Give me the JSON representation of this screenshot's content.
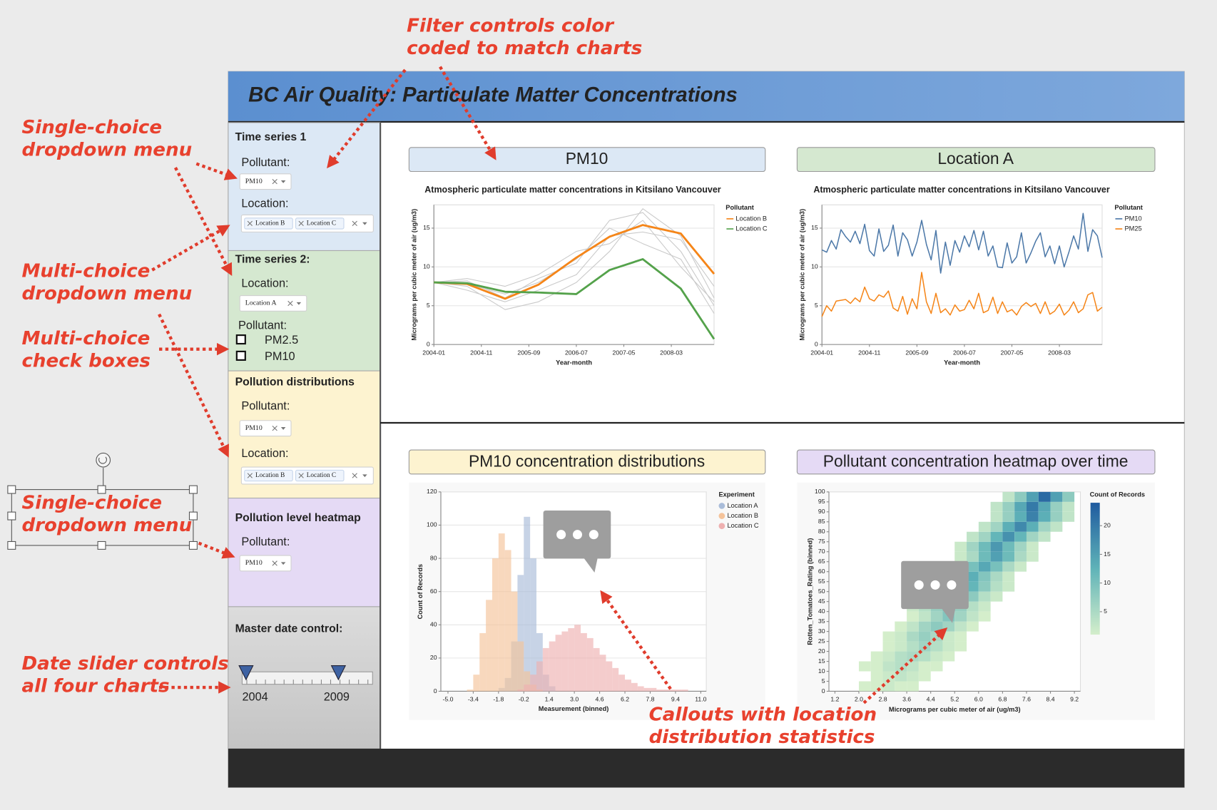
{
  "header": {
    "title": "BC Air Quality: Particulate Matter Concentrations"
  },
  "sidebar": {
    "time_series_1": {
      "title": "Time series 1",
      "pollutant_label": "Pollutant:",
      "pollutant": "PM10",
      "location_label": "Location:",
      "locations": [
        "Location B",
        "Location C"
      ]
    },
    "time_series_2": {
      "title": "Time series 2:",
      "location_label": "Location:",
      "location": "Location A",
      "pollutant_label": "Pollutant:",
      "pollutants": [
        "PM2.5",
        "PM10"
      ]
    },
    "distributions": {
      "title": "Pollution distributions",
      "pollutant_label": "Pollutant:",
      "pollutant": "PM10",
      "location_label": "Location:",
      "locations": [
        "Location B",
        "Location C"
      ]
    },
    "heatmap": {
      "title": "Pollution level heatmap",
      "pollutant_label": "Pollutant:",
      "pollutant": "PM10"
    },
    "date_control": {
      "title": "Master date control:",
      "start": "2004",
      "end": "2009"
    }
  },
  "panels": [
    "PM10",
    "Location A",
    "PM10 concentration distributions",
    "Pollutant concentration heatmap over time"
  ],
  "annotations": [
    [
      "Filter controls color",
      "coded to match charts"
    ],
    [
      "Single-choice",
      "dropdown menu"
    ],
    [
      "Multi-choice",
      "dropdown menu"
    ],
    [
      "Multi-choice",
      "check boxes"
    ],
    [
      "Single-choice",
      "dropdown menu"
    ],
    [
      "Date slider controls",
      "all four charts"
    ],
    [
      "Callouts with location",
      "distribution statistics"
    ]
  ],
  "chart_data": [
    {
      "type": "line",
      "title": "Atmospheric particulate matter concentrations in Kitsilano Vancouver",
      "x_label": "Year-month",
      "y_label": "Micrograms per cubic meter of air (ug/m3)",
      "legend_title": "Pollutant",
      "x": [
        "2004-01",
        "2004-08",
        "2005-04",
        "2005-11",
        "2006-07",
        "2007-02",
        "2007-09",
        "2008-05",
        "2008-12"
      ],
      "series": [
        {
          "name": "Location B",
          "color": "#f58518",
          "values": [
            8.0,
            7.8,
            5.9,
            7.7,
            11.2,
            13.9,
            15.4,
            14.3,
            9.1
          ]
        },
        {
          "name": "Location C",
          "color": "#54a24b",
          "values": [
            8.0,
            7.9,
            6.8,
            6.7,
            6.5,
            9.6,
            11.0,
            7.2,
            0.7
          ]
        }
      ],
      "background_color": "#c9c9c9",
      "background_series": [
        [
          8.0,
          7.5,
          4.5,
          5.5,
          8.0,
          12.0,
          17.5,
          14.0,
          6.0
        ],
        [
          8.0,
          8.2,
          6.0,
          8.5,
          10.5,
          16.0,
          17.0,
          12.0,
          5.0
        ],
        [
          8.0,
          7.0,
          5.5,
          7.0,
          9.0,
          14.0,
          14.5,
          13.5,
          7.5
        ],
        [
          8.0,
          8.5,
          7.5,
          9.0,
          12.0,
          13.0,
          16.0,
          10.0,
          5.5
        ],
        [
          8.0,
          7.8,
          6.5,
          8.0,
          11.0,
          15.0,
          13.0,
          11.0,
          4.0
        ]
      ],
      "xlim": [
        "2004-01",
        "2008-12"
      ],
      "xticks": [
        "2004-01",
        "2004-11",
        "2005-09",
        "2006-07",
        "2007-05",
        "2008-03"
      ],
      "ylim": [
        0,
        18
      ],
      "yticks": [
        0,
        5,
        10,
        15
      ],
      "grid": true
    },
    {
      "type": "line",
      "title": "Atmospheric particulate matter concentrations in Kitsilano Vancouver",
      "x_label": "Year-month",
      "y_label": "Micrograms per cubic meter of air (ug/m3)",
      "legend_title": "Pollutant",
      "x": [
        "2004-01",
        "2004-02",
        "2004-03",
        "2004-04",
        "2004-05",
        "2004-06",
        "2004-07",
        "2004-08",
        "2004-09",
        "2004-10",
        "2004-11",
        "2004-12",
        "2005-01",
        "2005-02",
        "2005-03",
        "2005-04",
        "2005-05",
        "2005-06",
        "2005-07",
        "2005-08",
        "2005-09",
        "2005-10",
        "2005-11",
        "2005-12",
        "2006-01",
        "2006-02",
        "2006-03",
        "2006-04",
        "2006-05",
        "2006-06",
        "2006-07",
        "2006-08",
        "2006-09",
        "2006-10",
        "2006-11",
        "2006-12",
        "2007-01",
        "2007-02",
        "2007-03",
        "2007-04",
        "2007-05",
        "2007-06",
        "2007-07",
        "2007-08",
        "2007-09",
        "2007-10",
        "2007-11",
        "2007-12",
        "2008-01",
        "2008-02",
        "2008-03",
        "2008-04",
        "2008-05",
        "2008-06",
        "2008-07",
        "2008-08",
        "2008-09",
        "2008-10",
        "2008-11",
        "2008-12"
      ],
      "series": [
        {
          "name": "PM10",
          "color": "#4c78a8",
          "values": [
            12.2,
            11.9,
            13.4,
            12.3,
            14.8,
            13.9,
            13.2,
            14.6,
            13.0,
            15.5,
            12.1,
            11.4,
            14.9,
            12.0,
            12.8,
            15.4,
            11.4,
            14.4,
            13.5,
            11.4,
            13.2,
            16.0,
            12.9,
            10.9,
            14.7,
            9.2,
            13.2,
            10.2,
            13.4,
            11.9,
            14.0,
            12.6,
            14.7,
            12.2,
            14.6,
            11.4,
            12.7,
            10.0,
            9.9,
            13.1,
            10.5,
            11.3,
            14.4,
            10.5,
            11.8,
            13.3,
            14.4,
            11.3,
            12.7,
            10.4,
            12.7,
            10.0,
            11.9,
            14.0,
            12.3,
            16.9,
            12.0,
            14.8,
            14.0,
            11.2
          ]
        },
        {
          "name": "PM25",
          "color": "#f58518",
          "values": [
            3.6,
            5.0,
            4.3,
            5.6,
            5.7,
            5.8,
            5.3,
            6.0,
            5.5,
            7.4,
            5.9,
            5.6,
            6.4,
            6.1,
            6.9,
            4.7,
            4.3,
            6.2,
            3.9,
            5.9,
            4.6,
            9.3,
            5.5,
            4.0,
            6.6,
            4.1,
            4.6,
            3.8,
            5.1,
            4.3,
            4.5,
            5.7,
            4.6,
            6.6,
            4.1,
            4.4,
            6.1,
            4.0,
            5.5,
            4.2,
            4.5,
            3.8,
            4.9,
            5.4,
            4.9,
            5.3,
            4.0,
            5.5,
            3.9,
            4.3,
            5.2,
            3.8,
            4.4,
            5.5,
            4.1,
            4.6,
            6.4,
            6.7,
            4.3,
            4.8
          ]
        }
      ],
      "xlim": [
        "2004-01",
        "2008-12"
      ],
      "xticks": [
        "2004-01",
        "2004-11",
        "2005-09",
        "2006-07",
        "2007-05",
        "2008-03"
      ],
      "ylim": [
        0,
        18
      ],
      "yticks": [
        0,
        5,
        10,
        15
      ],
      "grid": true
    },
    {
      "type": "histogram",
      "x_label": "Measurement (binned)",
      "y_label": "Count of Records",
      "legend_title": "Experiment",
      "bins": [
        -5,
        -4.6,
        -4.2,
        -3.8,
        -3.4,
        -3,
        -2.6,
        -2.2,
        -1.8,
        -1.4,
        -1,
        -0.6,
        -0.2,
        0.2,
        0.6,
        1,
        1.4,
        1.8,
        2.2,
        2.6,
        3,
        3.4,
        3.8,
        4.2,
        4.6,
        5,
        5.4,
        5.8,
        6.2,
        6.6,
        7,
        7.4,
        7.8,
        8.2,
        8.6,
        9,
        9.4,
        9.8,
        10.2,
        10.6,
        11
      ],
      "series": [
        {
          "name": "Location A",
          "color": "#a9bcd9",
          "values": [
            0,
            0,
            0,
            0,
            0,
            0,
            0,
            0,
            2,
            8,
            30,
            70,
            105,
            80,
            35,
            10,
            3,
            0,
            0,
            0,
            0,
            0,
            0,
            0,
            0,
            0,
            0,
            0,
            0,
            0,
            0,
            0,
            0,
            0,
            0,
            0,
            0,
            0,
            0,
            0
          ]
        },
        {
          "name": "Location B",
          "color": "#f5c39a",
          "values": [
            0,
            0,
            0,
            1,
            10,
            35,
            55,
            80,
            95,
            85,
            60,
            30,
            12,
            4,
            1,
            0,
            0,
            0,
            0,
            0,
            0,
            0,
            0,
            0,
            0,
            0,
            0,
            0,
            0,
            0,
            0,
            0,
            0,
            0,
            0,
            0,
            0,
            0,
            0,
            0
          ]
        },
        {
          "name": "Location C",
          "color": "#eeb0b0",
          "values": [
            0,
            0,
            0,
            0,
            0,
            0,
            0,
            0,
            0,
            0,
            0,
            1,
            4,
            10,
            18,
            26,
            30,
            34,
            36,
            38,
            40,
            35,
            32,
            26,
            22,
            18,
            14,
            10,
            7,
            5,
            3,
            2,
            2,
            1,
            1,
            1,
            1,
            1,
            0,
            0
          ]
        }
      ],
      "xlim": [
        -5.45,
        11.35
      ],
      "xticks": [
        {
          "value": -5,
          "label": "-5.0"
        },
        -3.4,
        -1.8,
        -0.2,
        1.4,
        {
          "value": 3,
          "label": "3.0"
        },
        4.6,
        6.2,
        7.8,
        9.4,
        {
          "value": 11,
          "label": "11.0"
        }
      ],
      "ylim": [
        0,
        120
      ],
      "yticks": [
        0,
        20,
        40,
        60,
        80,
        100,
        120
      ],
      "grid": true
    },
    {
      "type": "heatmap",
      "x_label": "Micrograms per cubic meter of air (ug/m3)",
      "y_label": "Rotten_Tomatoes_Rating (binned)",
      "legend_title": "Count of Records",
      "x_bins": [
        1.2,
        1.6,
        2.0,
        2.4,
        2.8,
        3.2,
        3.6,
        4.0,
        4.4,
        4.8,
        5.2,
        5.6,
        6.0,
        6.4,
        6.8,
        7.2,
        7.6,
        8.0,
        8.4,
        8.8,
        9.2
      ],
      "y_bins": [
        0,
        5,
        10,
        15,
        20,
        25,
        30,
        35,
        40,
        45,
        50,
        55,
        60,
        65,
        70,
        75,
        80,
        85,
        90,
        95,
        100
      ],
      "counts": [
        [
          0,
          0,
          1,
          1,
          2,
          1,
          1,
          0,
          0,
          0,
          0,
          0,
          0,
          0,
          0,
          0,
          0,
          0,
          0,
          0
        ],
        [
          0,
          0,
          0,
          1,
          2,
          3,
          2,
          1,
          0,
          0,
          0,
          0,
          0,
          0,
          0,
          0,
          0,
          0,
          0,
          0
        ],
        [
          0,
          0,
          1,
          1,
          3,
          4,
          3,
          1,
          1,
          0,
          0,
          0,
          0,
          0,
          0,
          0,
          0,
          0,
          0,
          0
        ],
        [
          0,
          0,
          0,
          1,
          2,
          4,
          5,
          4,
          2,
          1,
          0,
          0,
          0,
          0,
          0,
          0,
          0,
          0,
          0,
          0
        ],
        [
          0,
          0,
          0,
          0,
          1,
          2,
          4,
          6,
          4,
          2,
          1,
          0,
          0,
          0,
          0,
          0,
          0,
          0,
          0,
          0
        ],
        [
          0,
          0,
          0,
          0,
          1,
          2,
          5,
          7,
          5,
          2,
          1,
          0,
          0,
          0,
          0,
          0,
          0,
          0,
          0,
          0
        ],
        [
          0,
          0,
          0,
          0,
          0,
          1,
          3,
          6,
          8,
          6,
          3,
          1,
          0,
          0,
          0,
          0,
          0,
          0,
          0,
          0
        ],
        [
          0,
          0,
          0,
          0,
          0,
          0,
          1,
          3,
          6,
          9,
          6,
          3,
          1,
          0,
          0,
          0,
          0,
          0,
          0,
          0
        ],
        [
          0,
          0,
          0,
          0,
          0,
          0,
          2,
          4,
          7,
          10,
          7,
          4,
          2,
          0,
          0,
          0,
          0,
          0,
          0,
          0
        ],
        [
          0,
          0,
          0,
          0,
          0,
          0,
          0,
          2,
          4,
          8,
          11,
          8,
          4,
          2,
          0,
          0,
          0,
          0,
          0,
          0
        ],
        [
          0,
          0,
          0,
          0,
          0,
          0,
          0,
          0,
          2,
          4,
          8,
          12,
          8,
          4,
          2,
          0,
          0,
          0,
          0,
          0
        ],
        [
          0,
          0,
          0,
          0,
          0,
          0,
          0,
          0,
          2,
          5,
          9,
          13,
          9,
          5,
          2,
          0,
          0,
          0,
          0,
          0
        ],
        [
          0,
          0,
          0,
          0,
          0,
          0,
          0,
          0,
          0,
          2,
          5,
          10,
          14,
          10,
          5,
          2,
          0,
          0,
          0,
          0
        ],
        [
          0,
          0,
          0,
          0,
          0,
          0,
          0,
          0,
          0,
          0,
          2,
          5,
          11,
          15,
          11,
          5,
          2,
          0,
          0,
          0
        ],
        [
          0,
          0,
          0,
          0,
          0,
          0,
          0,
          0,
          0,
          0,
          2,
          6,
          11,
          16,
          11,
          6,
          2,
          0,
          0,
          0
        ],
        [
          0,
          0,
          0,
          0,
          0,
          0,
          0,
          0,
          0,
          0,
          0,
          3,
          6,
          12,
          17,
          12,
          6,
          3,
          0,
          0
        ],
        [
          0,
          0,
          0,
          0,
          0,
          0,
          0,
          0,
          0,
          0,
          0,
          0,
          3,
          6,
          13,
          18,
          13,
          6,
          3,
          0
        ],
        [
          0,
          0,
          0,
          0,
          0,
          0,
          0,
          0,
          0,
          0,
          0,
          0,
          0,
          3,
          7,
          13,
          19,
          13,
          7,
          3
        ],
        [
          0,
          0,
          0,
          0,
          0,
          0,
          0,
          0,
          0,
          0,
          0,
          0,
          0,
          3,
          7,
          14,
          20,
          14,
          7,
          3
        ],
        [
          0,
          0,
          0,
          0,
          0,
          0,
          0,
          0,
          0,
          0,
          0,
          0,
          0,
          0,
          3,
          8,
          15,
          22,
          15,
          8
        ]
      ],
      "colors": [
        "#d4eecb",
        "#5fb3b8",
        "#1f5b9f"
      ],
      "zlim": [
        1,
        24
      ],
      "zticks": [
        5,
        10,
        15,
        20
      ],
      "xlim": [
        1.0,
        9.4
      ],
      "xticks": [
        1.2,
        {
          "value": 2,
          "label": "2.0"
        },
        2.8,
        3.6,
        4.4,
        5.2,
        {
          "value": 6,
          "label": "6.0"
        },
        6.8,
        7.6,
        8.4,
        9.2
      ],
      "ylim": [
        0,
        100
      ],
      "yticks": [
        0,
        5,
        10,
        15,
        20,
        25,
        30,
        35,
        40,
        45,
        50,
        55,
        60,
        65,
        70,
        75,
        80,
        85,
        90,
        95,
        100
      ],
      "grid": false
    }
  ]
}
